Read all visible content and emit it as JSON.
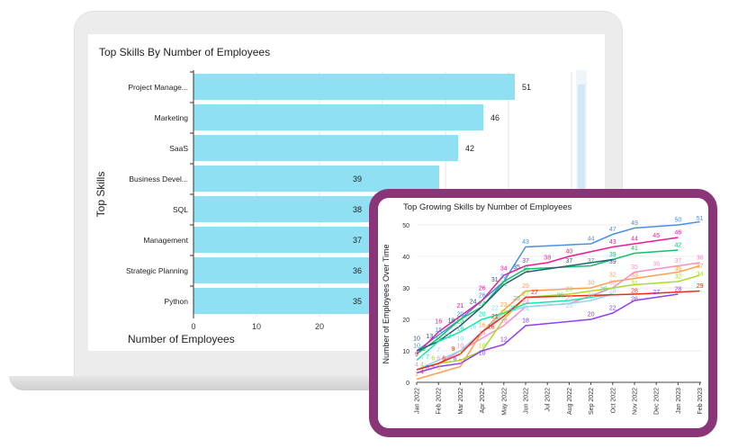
{
  "chart_data": [
    {
      "type": "bar",
      "orientation": "horizontal",
      "title": "Top Skills By Number of Employees",
      "xlabel": "Number of Employees",
      "ylabel": "Top Skills",
      "categories": [
        "Project Manage...",
        "Marketing",
        "SaaS",
        "Business Devel...",
        "SQL",
        "Management",
        "Strategic Planning",
        "Python"
      ],
      "values": [
        51,
        46,
        42,
        39,
        38,
        37,
        36,
        35
      ],
      "xlim": [
        0,
        60
      ],
      "xticks": [
        0,
        10,
        20
      ],
      "grid": true,
      "bar_color": "#8ee0f2"
    },
    {
      "type": "line",
      "title": "Top Growing Skills by Number of Employees",
      "xlabel": "",
      "ylabel": "Number of Employees Over Time",
      "x": [
        "Jan 2022",
        "Feb 2022",
        "Mar 2022",
        "Apr 2022",
        "May 2022",
        "Jun 2022",
        "Jul 2022",
        "Aug 2022",
        "Sep 2022",
        "Oct 2022",
        "Nov 2022",
        "Dec 2022",
        "Jan 2023",
        "Feb 2023"
      ],
      "ylim": [
        0,
        50
      ],
      "yticks": [
        0,
        10,
        20,
        30,
        40,
        50
      ],
      "grid": true,
      "series": [
        {
          "color": "#4a90e2",
          "values": [
            10,
            15,
            20,
            26,
            32,
            43,
            null,
            null,
            44,
            47,
            49,
            null,
            50,
            51
          ]
        },
        {
          "color": "#f0199a",
          "values": [
            9,
            16,
            21,
            26,
            34,
            37,
            38,
            40,
            null,
            43,
            44,
            45,
            46,
            null
          ]
        },
        {
          "color": "#12c06a",
          "values": [
            9,
            14,
            20,
            24,
            32,
            36,
            null,
            null,
            37,
            39,
            41,
            null,
            42,
            null
          ]
        },
        {
          "color": "#2d5a78",
          "values": [
            10,
            13,
            18,
            24,
            31,
            35,
            null,
            37,
            null,
            39,
            null,
            null,
            null,
            null
          ]
        },
        {
          "color": "#f78fc8",
          "values": [
            4,
            6,
            10,
            14,
            18,
            24,
            null,
            25,
            null,
            30,
            35,
            36,
            37,
            38
          ]
        },
        {
          "color": "#ffa050",
          "values": [
            1,
            3,
            5,
            16,
            23,
            29,
            null,
            null,
            30,
            32,
            33,
            null,
            35,
            37
          ]
        },
        {
          "color": "#a8dc28",
          "values": [
            4,
            6,
            7,
            10,
            20,
            27,
            null,
            28,
            null,
            null,
            31,
            null,
            32,
            34
          ]
        },
        {
          "color": "#8ed8f0",
          "values": [
            4,
            7,
            10,
            16,
            22,
            24,
            null,
            25,
            26,
            28,
            null,
            null,
            null,
            null
          ]
        },
        {
          "color": "#14e8a8",
          "values": [
            7,
            13,
            16,
            20,
            22,
            25,
            null,
            26,
            null,
            28,
            null,
            null,
            null,
            null
          ]
        },
        {
          "color": "#f02a1a",
          "values": [
            4,
            6,
            9,
            16,
            21,
            27,
            null,
            null,
            null,
            null,
            28,
            null,
            null,
            29
          ]
        },
        {
          "color": "#9040f0",
          "values": [
            3,
            5,
            6,
            10,
            12,
            18,
            null,
            null,
            20,
            22,
            26,
            27,
            28,
            null
          ]
        }
      ]
    }
  ]
}
